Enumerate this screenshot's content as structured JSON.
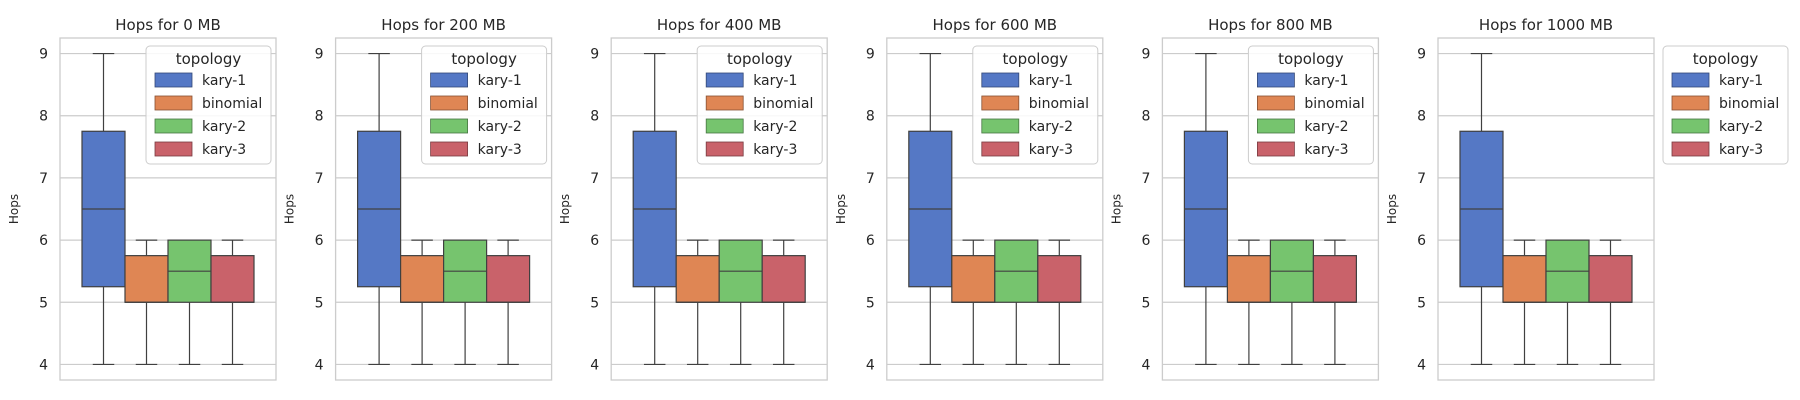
{
  "figure": {
    "background": "#ffffff",
    "grid_color": "#cccccc",
    "frame_color": "#cccccc",
    "line_color": "#404040"
  },
  "chart_data": [
    {
      "type": "box",
      "title": "Hops for 0 MB",
      "ylabel": "Hops",
      "ylim": [
        3.75,
        9.25
      ],
      "yticks": [
        4,
        5,
        6,
        7,
        8,
        9
      ],
      "grid": true,
      "legend": {
        "title": "topology",
        "placement": "top-right"
      },
      "series": [
        {
          "name": "kary-1",
          "color": "#5578c5",
          "min": 4,
          "q1": 5.25,
          "median": 6.5,
          "q3": 7.75,
          "max": 9
        },
        {
          "name": "binomial",
          "color": "#df8654",
          "min": 4,
          "q1": 5,
          "median": 5,
          "q3": 5.75,
          "max": 6
        },
        {
          "name": "kary-2",
          "color": "#76c46e",
          "min": 4,
          "q1": 5,
          "median": 5.5,
          "q3": 6,
          "max": 6
        },
        {
          "name": "kary-3",
          "color": "#c9626a",
          "min": 4,
          "q1": 5,
          "median": 5,
          "q3": 5.75,
          "max": 6
        }
      ]
    },
    {
      "type": "box",
      "title": "Hops for 200 MB",
      "ylabel": "Hops",
      "ylim": [
        3.75,
        9.25
      ],
      "yticks": [
        4,
        5,
        6,
        7,
        8,
        9
      ],
      "grid": true,
      "legend": {
        "title": "topology",
        "placement": "top-right"
      },
      "series": [
        {
          "name": "kary-1",
          "color": "#5578c5",
          "min": 4,
          "q1": 5.25,
          "median": 6.5,
          "q3": 7.75,
          "max": 9
        },
        {
          "name": "binomial",
          "color": "#df8654",
          "min": 4,
          "q1": 5,
          "median": 5,
          "q3": 5.75,
          "max": 6
        },
        {
          "name": "kary-2",
          "color": "#76c46e",
          "min": 4,
          "q1": 5,
          "median": 5.5,
          "q3": 6,
          "max": 6
        },
        {
          "name": "kary-3",
          "color": "#c9626a",
          "min": 4,
          "q1": 5,
          "median": 5,
          "q3": 5.75,
          "max": 6
        }
      ]
    },
    {
      "type": "box",
      "title": "Hops for 400 MB",
      "ylabel": "Hops",
      "ylim": [
        3.75,
        9.25
      ],
      "yticks": [
        4,
        5,
        6,
        7,
        8,
        9
      ],
      "grid": true,
      "legend": {
        "title": "topology",
        "placement": "top-right"
      },
      "series": [
        {
          "name": "kary-1",
          "color": "#5578c5",
          "min": 4,
          "q1": 5.25,
          "median": 6.5,
          "q3": 7.75,
          "max": 9
        },
        {
          "name": "binomial",
          "color": "#df8654",
          "min": 4,
          "q1": 5,
          "median": 5,
          "q3": 5.75,
          "max": 6
        },
        {
          "name": "kary-2",
          "color": "#76c46e",
          "min": 4,
          "q1": 5,
          "median": 5.5,
          "q3": 6,
          "max": 6
        },
        {
          "name": "kary-3",
          "color": "#c9626a",
          "min": 4,
          "q1": 5,
          "median": 5,
          "q3": 5.75,
          "max": 6
        }
      ]
    },
    {
      "type": "box",
      "title": "Hops for 600 MB",
      "ylabel": "Hops",
      "ylim": [
        3.75,
        9.25
      ],
      "yticks": [
        4,
        5,
        6,
        7,
        8,
        9
      ],
      "grid": true,
      "legend": {
        "title": "topology",
        "placement": "top-right"
      },
      "series": [
        {
          "name": "kary-1",
          "color": "#5578c5",
          "min": 4,
          "q1": 5.25,
          "median": 6.5,
          "q3": 7.75,
          "max": 9
        },
        {
          "name": "binomial",
          "color": "#df8654",
          "min": 4,
          "q1": 5,
          "median": 5,
          "q3": 5.75,
          "max": 6
        },
        {
          "name": "kary-2",
          "color": "#76c46e",
          "min": 4,
          "q1": 5,
          "median": 5.5,
          "q3": 6,
          "max": 6
        },
        {
          "name": "kary-3",
          "color": "#c9626a",
          "min": 4,
          "q1": 5,
          "median": 5,
          "q3": 5.75,
          "max": 6
        }
      ]
    },
    {
      "type": "box",
      "title": "Hops for 800 MB",
      "ylabel": "Hops",
      "ylim": [
        3.75,
        9.25
      ],
      "yticks": [
        4,
        5,
        6,
        7,
        8,
        9
      ],
      "grid": true,
      "legend": {
        "title": "topology",
        "placement": "top-right"
      },
      "series": [
        {
          "name": "kary-1",
          "color": "#5578c5",
          "min": 4,
          "q1": 5.25,
          "median": 6.5,
          "q3": 7.75,
          "max": 9
        },
        {
          "name": "binomial",
          "color": "#df8654",
          "min": 4,
          "q1": 5,
          "median": 5,
          "q3": 5.75,
          "max": 6
        },
        {
          "name": "kary-2",
          "color": "#76c46e",
          "min": 4,
          "q1": 5,
          "median": 5.5,
          "q3": 6,
          "max": 6
        },
        {
          "name": "kary-3",
          "color": "#c9626a",
          "min": 4,
          "q1": 5,
          "median": 5,
          "q3": 5.75,
          "max": 6
        }
      ]
    },
    {
      "type": "box",
      "title": "Hops for 1000 MB",
      "ylabel": "Hops",
      "ylim": [
        3.75,
        9.25
      ],
      "yticks": [
        4,
        5,
        6,
        7,
        8,
        9
      ],
      "grid": true,
      "legend": {
        "title": "topology",
        "placement": "outside-right"
      },
      "series": [
        {
          "name": "kary-1",
          "color": "#5578c5",
          "min": 4,
          "q1": 5.25,
          "median": 6.5,
          "q3": 7.75,
          "max": 9
        },
        {
          "name": "binomial",
          "color": "#df8654",
          "min": 4,
          "q1": 5,
          "median": 5,
          "q3": 5.75,
          "max": 6
        },
        {
          "name": "kary-2",
          "color": "#76c46e",
          "min": 4,
          "q1": 5,
          "median": 5.5,
          "q3": 6,
          "max": 6
        },
        {
          "name": "kary-3",
          "color": "#c9626a",
          "min": 4,
          "q1": 5,
          "median": 5,
          "q3": 5.75,
          "max": 6
        }
      ]
    }
  ]
}
